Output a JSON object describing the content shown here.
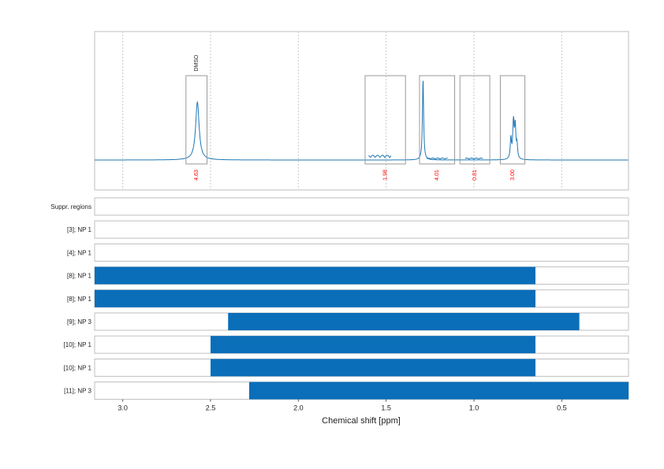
{
  "chart_data": {
    "type": "nmr-spectrum",
    "xlabel": "Chemical shift [ppm]",
    "xlim": [
      3.16,
      0.12
    ],
    "xticks": [
      3.0,
      2.5,
      2.0,
      1.5,
      1.0,
      0.5
    ],
    "xtick_labels": [
      "3.0",
      "2.5",
      "2.0",
      "1.5",
      "1.0",
      "0.5"
    ],
    "grid": true,
    "spectrum": {
      "color": "#1f77b4",
      "peaks": [
        {
          "ppm": 2.575,
          "height": 0.72,
          "width": 0.012
        },
        {
          "ppm": 1.29,
          "height": 1.0,
          "width": 0.004
        },
        {
          "ppm": 0.775,
          "height": 0.47,
          "width": 0.005
        },
        {
          "ppm": 0.765,
          "height": 0.38,
          "width": 0.004
        },
        {
          "ppm": 0.79,
          "height": 0.25,
          "width": 0.004
        },
        {
          "ppm": 0.755,
          "height": 0.17,
          "width": 0.004
        }
      ]
    },
    "integrals": [
      {
        "ppm_start": 2.64,
        "ppm_end": 2.52,
        "value": "4.63",
        "label": "DMSO"
      },
      {
        "ppm_start": 1.62,
        "ppm_end": 1.39,
        "value": "1.98",
        "label": ""
      },
      {
        "ppm_start": 1.31,
        "ppm_end": 1.11,
        "value": "4.01",
        "label": ""
      },
      {
        "ppm_start": 1.08,
        "ppm_end": 0.91,
        "value": "0.81",
        "label": ""
      },
      {
        "ppm_start": 0.85,
        "ppm_end": 0.71,
        "value": "3.00",
        "label": ""
      }
    ],
    "integral_value_color": "#ff0000",
    "tracks": [
      {
        "label": "Suppr. regions",
        "bar": null
      },
      {
        "label": "[3]; NP 1",
        "bar": null
      },
      {
        "label": "[4]; NP 1",
        "bar": null
      },
      {
        "label": "[8]; NP 1",
        "bar": [
          3.16,
          0.65
        ]
      },
      {
        "label": "[8]; NP 1",
        "bar": [
          3.16,
          0.65
        ]
      },
      {
        "label": "[9]; NP 3",
        "bar": [
          2.4,
          0.4
        ]
      },
      {
        "label": "[10]; NP 1",
        "bar": [
          2.5,
          0.65
        ]
      },
      {
        "label": "[10]; NP 1",
        "bar": [
          2.5,
          0.65
        ]
      },
      {
        "label": "[11]; NP 3",
        "bar": [
          2.28,
          0.12
        ]
      }
    ],
    "bar_color": "#0a6eb9"
  }
}
